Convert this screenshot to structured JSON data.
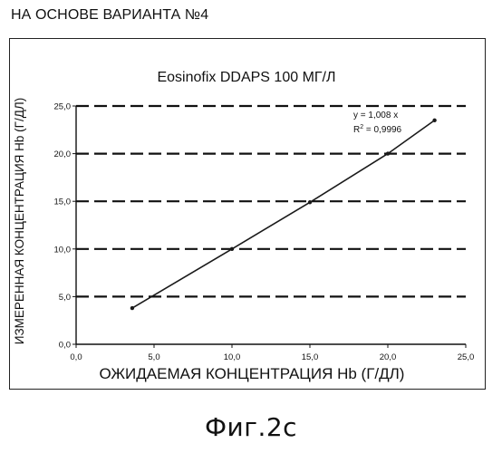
{
  "page": {
    "header": "НА ОСНОВЕ ВАРИАНТА №4",
    "caption": "Фиг.2c"
  },
  "chart_data": {
    "type": "scatter",
    "title": "Eosinofix DDAPS 100 МГ/Л",
    "xlabel": "ОЖИДАЕМАЯ КОНЦЕНТРАЦИЯ Hb (Г/ДЛ)",
    "ylabel": "ИЗМЕРЕННАЯ КОНЦЕНТРАЦИЯ Hb (Г/ДЛ)",
    "xlim": [
      0,
      25
    ],
    "ylim": [
      0,
      25
    ],
    "x_ticks": [
      "0,0",
      "5,0",
      "10,0",
      "15,0",
      "20,0",
      "25,0"
    ],
    "y_ticks": [
      "0,0",
      "5,0",
      "10,0",
      "15,0",
      "20,0",
      "25,0"
    ],
    "grid": "horizontal-dashed",
    "series": [
      {
        "x": [
          3.6,
          10.0,
          15.0,
          20.0,
          23.0
        ],
        "y": [
          3.8,
          10.0,
          14.9,
          20.0,
          23.5
        ],
        "trendline": true
      }
    ],
    "annotations": {
      "equation": "y = 1,008 x",
      "r2_prefix": "R",
      "r2_exponent": "2",
      "r2_value": " = 0,9996"
    },
    "colors": {
      "line": "#1a1a1a",
      "grid": "#111111"
    }
  }
}
